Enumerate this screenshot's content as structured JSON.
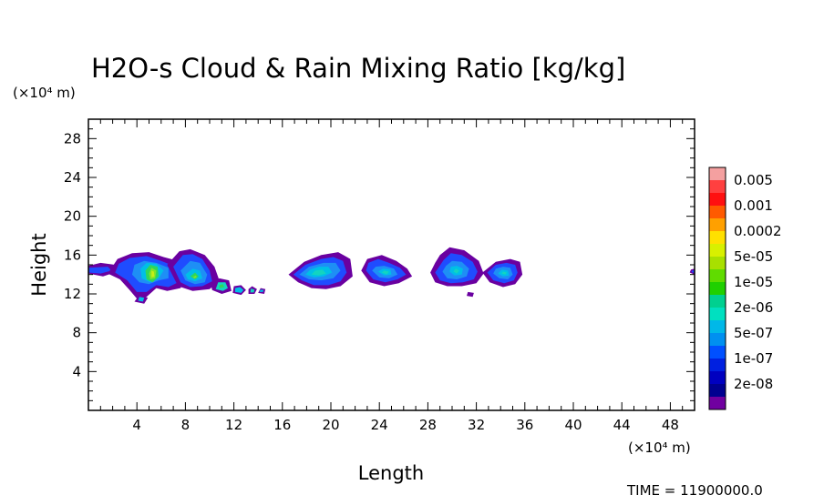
{
  "chart_data": {
    "type": "heatmap",
    "title": "H2O-s Cloud & Rain Mixing Ratio [kg/kg]",
    "xlabel": "Length",
    "ylabel": "Height",
    "x_unit": "(×10⁴ m)",
    "y_unit": "(×10⁴ m)",
    "xlim": [
      0,
      50
    ],
    "ylim": [
      0,
      30
    ],
    "x_ticks": [
      4,
      8,
      12,
      16,
      20,
      24,
      28,
      32,
      36,
      40,
      44,
      48
    ],
    "y_ticks": [
      4,
      8,
      12,
      16,
      20,
      24,
      28
    ],
    "time_label": "TIME = 11900000.0",
    "colorbar": {
      "labels": [
        "0.005",
        "0.001",
        "0.0002",
        "5e-05",
        "1e-05",
        "2e-06",
        "5e-07",
        "1e-07",
        "2e-08"
      ],
      "colors": [
        "#f4a0a0",
        "#ff4040",
        "#ff1010",
        "#ff5a00",
        "#ffa000",
        "#ffe000",
        "#d8f000",
        "#a8e000",
        "#60dc00",
        "#20d000",
        "#00d090",
        "#00e0c0",
        "#00b8e8",
        "#0090f0",
        "#0050ff",
        "#0020e0",
        "#0000c0",
        "#000090",
        "#7000a0"
      ]
    },
    "features": [
      {
        "name": "cloud-a",
        "x_range": [
          0,
          2.5
        ],
        "y_range": [
          13.5,
          15.2
        ],
        "peak": "1e-07"
      },
      {
        "name": "cloud-b",
        "x_range": [
          2,
          8
        ],
        "y_range": [
          11.5,
          16.3
        ],
        "peak": "5e-05"
      },
      {
        "name": "cloud-c",
        "x_range": [
          6.5,
          10.8
        ],
        "y_range": [
          12.3,
          16.6
        ],
        "peak": "5e-05"
      },
      {
        "name": "cloud-d",
        "x_range": [
          10,
          14.5
        ],
        "y_range": [
          11.8,
          13.6
        ],
        "peak": "5e-06"
      },
      {
        "name": "cloud-e",
        "x_range": [
          16.5,
          21.8
        ],
        "y_range": [
          12.5,
          16.3
        ],
        "peak": "5e-06"
      },
      {
        "name": "cloud-f",
        "x_range": [
          22.5,
          26.7
        ],
        "y_range": [
          12.8,
          16
        ],
        "peak": "5e-06"
      },
      {
        "name": "cloud-g",
        "x_range": [
          28.2,
          32.6
        ],
        "y_range": [
          12.8,
          16.8
        ],
        "peak": "5e-06"
      },
      {
        "name": "cloud-h",
        "x_range": [
          32.5,
          35.8
        ],
        "y_range": [
          12.7,
          15.6
        ],
        "peak": "5e-06"
      },
      {
        "name": "cloud-i",
        "x_range": [
          49.6,
          50
        ],
        "y_range": [
          14,
          14.6
        ],
        "peak": "1e-07"
      }
    ]
  }
}
